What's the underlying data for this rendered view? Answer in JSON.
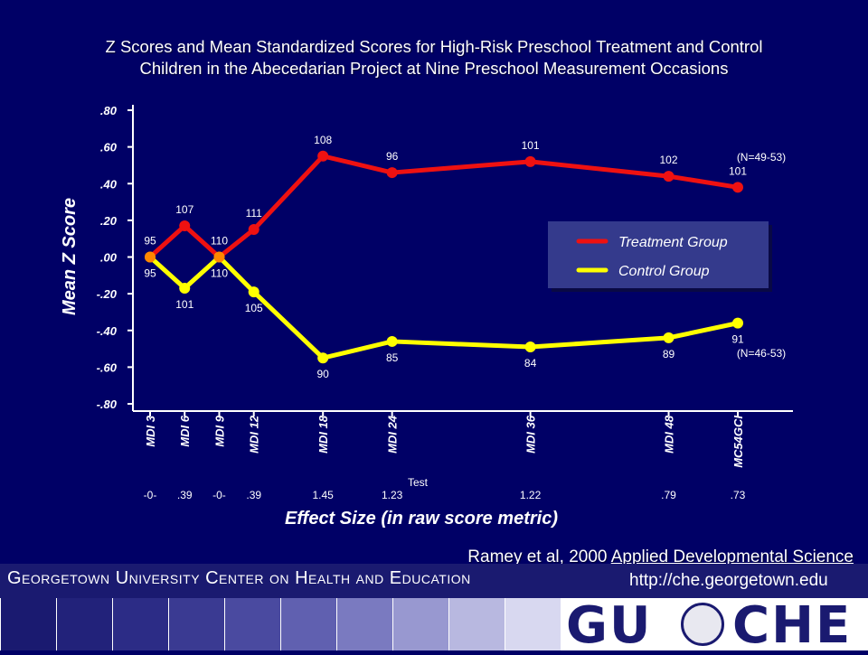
{
  "title_line1": "Z Scores and Mean Standardized Scores for High-Risk Preschool Treatment and Control",
  "title_line2": "Children in the Abecedarian Project at Nine Preschool Measurement Occasions",
  "citation": {
    "authors": "Ramey et al, 2000",
    "journal": "Applied Developmental Science"
  },
  "footer": {
    "name": "Georgetown University Center on Health and Education",
    "url": "http://che.georgetown.edu",
    "logo_left": "GU",
    "logo_right": "CHE"
  },
  "colors": {
    "background": "#000066",
    "treatment": "#ee1111",
    "control": "#ffff00",
    "joint": "#ff8800",
    "legend_bg": "#343a8c"
  },
  "chart_data": {
    "type": "line",
    "ylabel": "Mean Z Score",
    "xlabel": "Test",
    "effect_label": "Effect Size (in raw score metric)",
    "ylim": [
      -0.8,
      0.8
    ],
    "yticks": [
      ".80",
      ".60",
      ".40",
      ".20",
      ".00",
      "-.20",
      "-.40",
      "-.60",
      "-.80"
    ],
    "categories": [
      "MDI 3",
      "MDI 6",
      "MDI 9",
      "MDI 12",
      "MDI 18",
      "MDI 24",
      "MDI 36",
      "MDI 48",
      "MC54GCI"
    ],
    "x_months": [
      3,
      6,
      9,
      12,
      18,
      24,
      36,
      48,
      54
    ],
    "effect_sizes": [
      "-0-",
      ".39",
      "-0-",
      ".39",
      "1.45",
      "1.23",
      "1.22",
      ".79",
      ".73"
    ],
    "series": [
      {
        "name": "Treatment Group",
        "values": [
          0.0,
          0.17,
          0.0,
          0.15,
          0.55,
          0.46,
          0.52,
          0.44,
          0.38
        ],
        "labels": [
          "95",
          "107",
          "110",
          "111",
          "108",
          "96",
          "101",
          "102",
          "101"
        ],
        "n_note": "(N=49-53)"
      },
      {
        "name": "Control Group",
        "values": [
          0.0,
          -0.17,
          0.0,
          -0.19,
          -0.55,
          -0.46,
          -0.49,
          -0.44,
          -0.36
        ],
        "labels": [
          "95",
          "101",
          "110",
          "105",
          "90",
          "85",
          "84",
          "89",
          "91"
        ],
        "n_note": "(N=46-53)"
      }
    ],
    "legend": "center-right",
    "grid": false
  }
}
